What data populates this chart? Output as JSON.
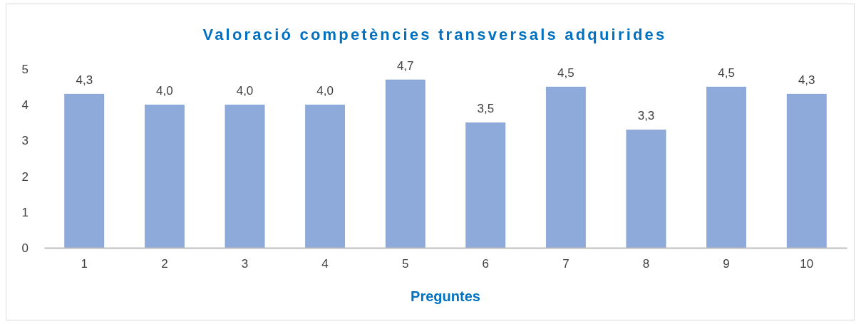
{
  "chart_data": {
    "type": "bar",
    "title": "Valoració competències transversals adquirides",
    "xlabel": "Preguntes",
    "categories": [
      "1",
      "2",
      "3",
      "4",
      "5",
      "6",
      "7",
      "8",
      "9",
      "10"
    ],
    "values": [
      4.3,
      4.0,
      4.0,
      4.0,
      4.7,
      3.5,
      4.5,
      3.3,
      4.5,
      4.3
    ],
    "value_labels": [
      "4,3",
      "4,0",
      "4,0",
      "4,0",
      "4,7",
      "3,5",
      "4,5",
      "3,3",
      "4,5",
      "4,3"
    ],
    "color": "#8eaadb",
    "ylim": [
      0,
      5
    ],
    "yticks": [
      0,
      1,
      2,
      3,
      4,
      5
    ],
    "grid": false
  }
}
